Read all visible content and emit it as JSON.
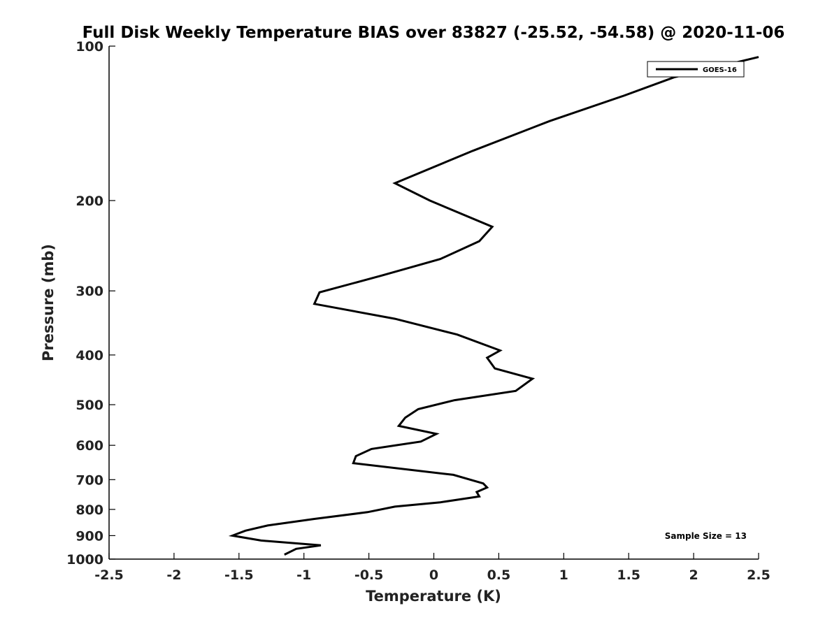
{
  "chart_data": {
    "type": "line",
    "title": "Full Disk Weekly Temperature BIAS over 83827 (-25.52, -54.58) @ 2020-11-06",
    "xlabel": "Temperature (K)",
    "ylabel": "Pressure (mb)",
    "xlim": [
      -2.5,
      2.5
    ],
    "ylim": [
      100,
      1000
    ],
    "y_scale": "log",
    "y_reversed": true,
    "grid": false,
    "legend": {
      "placement": "top-right",
      "entries": [
        "GOES-16"
      ]
    },
    "x_ticks": [
      -2.5,
      -2,
      -1.5,
      -1,
      -0.5,
      0,
      0.5,
      1,
      1.5,
      2,
      2.5
    ],
    "x_tick_labels": [
      "-2.5",
      "-2",
      "-1.5",
      "-1",
      "-0.5",
      "0",
      "0.5",
      "1",
      "1.5",
      "2",
      "2.5"
    ],
    "y_ticks": [
      100,
      200,
      300,
      400,
      500,
      600,
      700,
      800,
      900,
      1000
    ],
    "y_tick_labels": [
      "100",
      "200",
      "300",
      "400",
      "500",
      "600",
      "700",
      "800",
      "900",
      "1000"
    ],
    "annotation": "Sample Size = 13",
    "line_color": "#000000",
    "series": [
      {
        "name": "GOES-16",
        "x": [
          2.5,
          1.85,
          1.46,
          0.89,
          0.3,
          -0.3,
          -0.03,
          0.45,
          0.35,
          0.05,
          -0.4,
          -0.88,
          -0.92,
          -0.3,
          0.18,
          0.51,
          0.41,
          0.47,
          0.76,
          0.63,
          0.16,
          -0.12,
          -0.22,
          -0.27,
          0.02,
          -0.1,
          -0.48,
          -0.6,
          -0.62,
          0.15,
          0.38,
          0.41,
          0.33,
          0.35,
          0.05,
          -0.3,
          -0.51,
          -0.92,
          -1.28,
          -1.45,
          -1.55,
          -1.33,
          -0.87,
          -1.06,
          -1.15
        ],
        "y": [
          105,
          115,
          125,
          140,
          160,
          185,
          200,
          225,
          240,
          260,
          280,
          302,
          318,
          340,
          365,
          392,
          405,
          425,
          445,
          470,
          490,
          510,
          530,
          550,
          570,
          590,
          610,
          630,
          650,
          685,
          712,
          725,
          740,
          755,
          775,
          790,
          810,
          835,
          860,
          880,
          900,
          920,
          940,
          955,
          980
        ]
      }
    ]
  }
}
